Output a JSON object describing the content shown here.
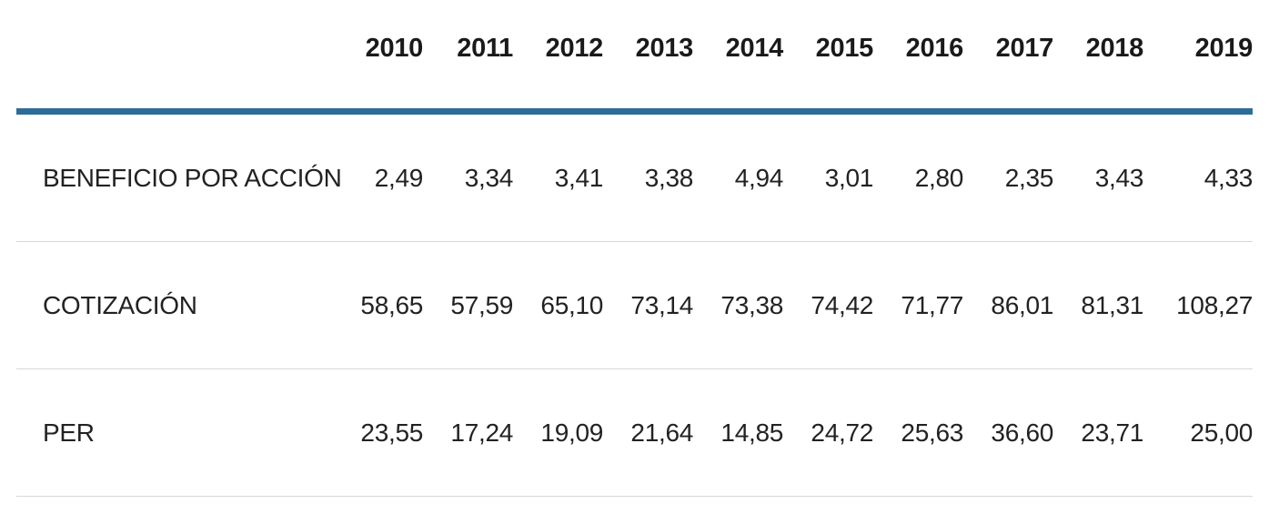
{
  "table": {
    "header": {
      "corner_label": "",
      "years": [
        "2010",
        "2011",
        "2012",
        "2013",
        "2014",
        "2015",
        "2016",
        "2017",
        "2018",
        "2019"
      ]
    },
    "rows": [
      {
        "label": "BENEFICIO POR ACCIÓN",
        "values": [
          "2,49",
          "3,34",
          "3,41",
          "3,38",
          "4,94",
          "3,01",
          "2,80",
          "2,35",
          "3,43",
          "4,33"
        ]
      },
      {
        "label": "COTIZACIÓN",
        "values": [
          "58,65",
          "57,59",
          "65,10",
          "73,14",
          "73,38",
          "74,42",
          "71,77",
          "86,01",
          "81,31",
          "108,27"
        ]
      },
      {
        "label": "PER",
        "values": [
          "23,55",
          "17,24",
          "19,09",
          "21,64",
          "14,85",
          "24,72",
          "25,63",
          "36,60",
          "23,71",
          "25,00"
        ]
      }
    ]
  },
  "colors": {
    "accent_rule": "#2d6c99",
    "row_divider": "#d8d8d8",
    "text": "#1f1f1f",
    "background": "#ffffff"
  },
  "chart_data": {
    "type": "table",
    "title": "",
    "categories": [
      2010,
      2011,
      2012,
      2013,
      2014,
      2015,
      2016,
      2017,
      2018,
      2019
    ],
    "series": [
      {
        "name": "BENEFICIO POR ACCIÓN",
        "values": [
          2.49,
          3.34,
          3.41,
          3.38,
          4.94,
          3.01,
          2.8,
          2.35,
          3.43,
          4.33
        ]
      },
      {
        "name": "COTIZACIÓN",
        "values": [
          58.65,
          57.59,
          65.1,
          73.14,
          73.38,
          74.42,
          71.77,
          86.01,
          81.31,
          108.27
        ]
      },
      {
        "name": "PER",
        "values": [
          23.55,
          17.24,
          19.09,
          21.64,
          14.85,
          24.72,
          25.63,
          36.6,
          23.71,
          25.0
        ]
      }
    ],
    "layout_hints": {
      "decimal_separator": "comma",
      "header_rule_color": "#2d6c99",
      "row_divider_color": "#d8d8d8",
      "value_alignment": "right"
    }
  }
}
